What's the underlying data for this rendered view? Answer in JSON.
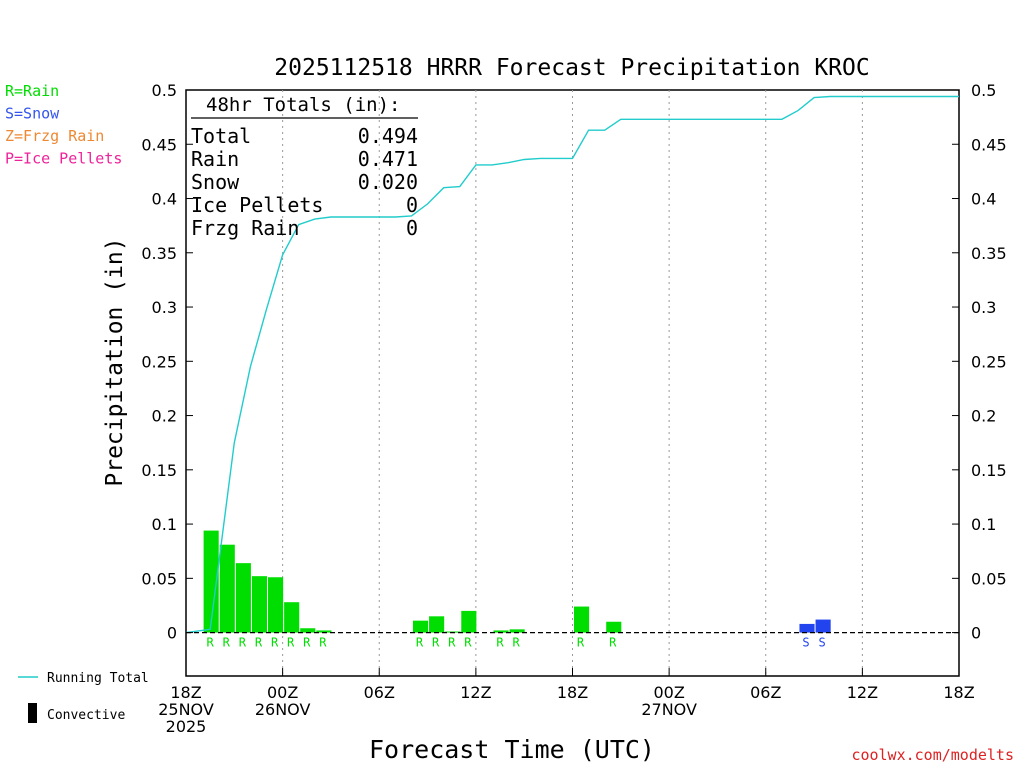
{
  "chart_data": {
    "type": "bar",
    "title": "2025112518 HRRR Forecast Precipitation KROC",
    "xlabel": "Forecast Time (UTC)",
    "ylabel": "Precipitation (in)",
    "ylim": [
      -0.04,
      0.5
    ],
    "xlim_hours": [
      0,
      48
    ],
    "yticks": [
      0,
      0.05,
      0.1,
      0.15,
      0.2,
      0.25,
      0.3,
      0.35,
      0.4,
      0.45,
      0.5
    ],
    "ytick_labels": [
      "0",
      "0.05",
      "0.1",
      "0.15",
      "0.2",
      "0.25",
      "0.3",
      "0.35",
      "0.4",
      "0.45",
      "0.5"
    ],
    "xticks": [
      {
        "hour": 0,
        "lines": [
          "18Z",
          "25NOV",
          "2025"
        ]
      },
      {
        "hour": 6,
        "lines": [
          "00Z",
          "26NOV"
        ]
      },
      {
        "hour": 12,
        "lines": [
          "06Z"
        ]
      },
      {
        "hour": 18,
        "lines": [
          "12Z"
        ]
      },
      {
        "hour": 24,
        "lines": [
          "18Z"
        ]
      },
      {
        "hour": 30,
        "lines": [
          "00Z",
          "27NOV"
        ]
      },
      {
        "hour": 36,
        "lines": [
          "06Z"
        ]
      },
      {
        "hour": 42,
        "lines": [
          "12Z"
        ]
      },
      {
        "hour": 48,
        "lines": [
          "18Z"
        ]
      }
    ],
    "legend_types": [
      {
        "label": "R=Rain",
        "color": "#00dd00"
      },
      {
        "label": "S=Snow",
        "color": "#3355ee"
      },
      {
        "label": "Z=Frzg Rain",
        "color": "#ee8833"
      },
      {
        "label": "P=Ice Pellets",
        "color": "#ee2299"
      }
    ],
    "legend_lines": [
      {
        "label": "Running Total",
        "color": "#22cccc"
      },
      {
        "label": "Convective",
        "color": "#000000"
      }
    ],
    "totals": {
      "header": "48hr Totals (in):",
      "rows": [
        {
          "label": "Total",
          "value": "0.494"
        },
        {
          "label": "Rain",
          "value": "0.471"
        },
        {
          "label": "Snow",
          "value": "0.020"
        },
        {
          "label": "Ice Pellets",
          "value": "0"
        },
        {
          "label": "Frzg Rain",
          "value": "0"
        }
      ]
    },
    "hourly_precip": {
      "hours": [
        2,
        3,
        4,
        5,
        6,
        7,
        8,
        9,
        10,
        11,
        12,
        13,
        14,
        15,
        16,
        17,
        18,
        19,
        20,
        21,
        22,
        23,
        24,
        25,
        26,
        27,
        28,
        29,
        30,
        31,
        32,
        33,
        34,
        35,
        36,
        37,
        38,
        39,
        40
      ],
      "values": [
        0.094,
        0.081,
        0.064,
        0.052,
        0.051,
        0.028,
        0.004,
        0.002,
        0,
        0,
        0,
        0,
        0,
        0.011,
        0.015,
        0.001,
        0.02,
        0,
        0.002,
        0.003,
        0,
        0,
        0,
        0.024,
        0,
        0.01,
        0,
        0,
        0,
        0,
        0,
        0,
        0,
        0,
        0,
        0,
        0,
        0.008,
        0.012
      ],
      "types": [
        "R",
        "R",
        "R",
        "R",
        "R",
        "R",
        "R",
        "R",
        "",
        "",
        "",
        "",
        "",
        "R",
        "R",
        "R",
        "R",
        "",
        "R",
        "R",
        "",
        "",
        "",
        "R",
        "",
        "R",
        "",
        "",
        "",
        "",
        "",
        "",
        "",
        "",
        "",
        "",
        "",
        "S",
        "S"
      ]
    },
    "running_total": {
      "hours": [
        0,
        1,
        1.5,
        2,
        3,
        4,
        5,
        6,
        7,
        8,
        9,
        10,
        11,
        12,
        13,
        14,
        15,
        16,
        17,
        18,
        19,
        20,
        21,
        22,
        23,
        24,
        25,
        26,
        27,
        28,
        29,
        30,
        31,
        32,
        33,
        34,
        35,
        36,
        37,
        38,
        39,
        40,
        41,
        42,
        43,
        44,
        45,
        46,
        47,
        48
      ],
      "values": [
        0,
        0.002,
        0.003,
        0.06,
        0.175,
        0.245,
        0.298,
        0.348,
        0.376,
        0.381,
        0.383,
        0.383,
        0.383,
        0.383,
        0.383,
        0.384,
        0.395,
        0.41,
        0.411,
        0.431,
        0.431,
        0.433,
        0.436,
        0.437,
        0.437,
        0.437,
        0.463,
        0.463,
        0.473,
        0.473,
        0.473,
        0.473,
        0.473,
        0.473,
        0.473,
        0.473,
        0.473,
        0.473,
        0.473,
        0.481,
        0.493,
        0.494,
        0.494,
        0.494,
        0.494,
        0.494,
        0.494,
        0.494,
        0.494,
        0.494
      ]
    },
    "credit": "coolwx.com/modelts",
    "colors": {
      "rain": "#00dd00",
      "snow": "#2244ee",
      "running_total": "#22cccc",
      "grid": "#999999",
      "credit": "#dd2222"
    }
  }
}
